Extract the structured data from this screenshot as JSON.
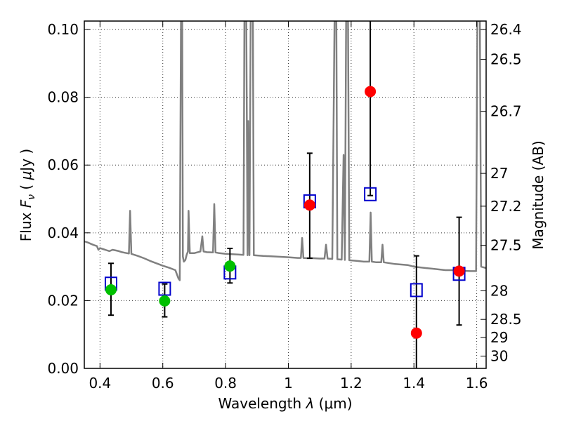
{
  "chart_data": {
    "type": "scatter",
    "xlabel": "Wavelength  λ (μm)",
    "ylabel": "Flux  Fν ( μJy )",
    "y2label": "Magnitude (AB)",
    "xlim": [
      0.35,
      1.63
    ],
    "ylim": [
      0.0,
      0.1025
    ],
    "xticks": [
      0.4,
      0.6,
      0.8,
      1.0,
      1.2,
      1.4,
      1.6
    ],
    "xtick_labels": [
      "0.4",
      "0.6",
      "0.8",
      "1",
      "1.2",
      "1.4",
      "1.6"
    ],
    "yticks": [
      0.0,
      0.02,
      0.04,
      0.06,
      0.08,
      0.1
    ],
    "ytick_labels": [
      "0.00",
      "0.02",
      "0.04",
      "0.06",
      "0.08",
      "0.10"
    ],
    "mag_ticks": [
      26.4,
      26.5,
      26.7,
      27,
      27.2,
      27.5,
      28,
      28.5,
      29,
      30
    ],
    "mag_tick_labels": [
      "26.4",
      "26.5",
      "26.7",
      "27",
      "27.2",
      "27.5",
      "28",
      "28.5",
      "29",
      "30"
    ],
    "grid": true,
    "colors": {
      "spectrum": "#808080",
      "detected": "#00c000",
      "model": "#0000cc",
      "undetected": "#ff0000",
      "errorbar": "#000000"
    },
    "observed": [
      {
        "x": 0.435,
        "y": 0.0232,
        "err_lo": 0.0075,
        "err_hi": 0.0078,
        "color": "green"
      },
      {
        "x": 0.606,
        "y": 0.0199,
        "err_lo": 0.0047,
        "err_hi": 0.005,
        "color": "green"
      },
      {
        "x": 0.814,
        "y": 0.0302,
        "err_lo": 0.005,
        "err_hi": 0.0052,
        "color": "green"
      },
      {
        "x": 1.068,
        "y": 0.0482,
        "err_lo": 0.0157,
        "err_hi": 0.0153,
        "color": "red"
      },
      {
        "x": 1.261,
        "y": 0.0817,
        "err_lo": 0.0307,
        "err_hi": 0.03,
        "color": "red"
      },
      {
        "x": 1.408,
        "y": 0.0104,
        "err_lo": 0.011,
        "err_hi": 0.0228,
        "color": "red"
      },
      {
        "x": 1.544,
        "y": 0.0287,
        "err_lo": 0.0159,
        "err_hi": 0.0159,
        "color": "red"
      }
    ],
    "model_photometry": [
      {
        "x": 0.435,
        "y": 0.025
      },
      {
        "x": 0.606,
        "y": 0.0235
      },
      {
        "x": 0.814,
        "y": 0.0283
      },
      {
        "x": 1.068,
        "y": 0.0493
      },
      {
        "x": 1.261,
        "y": 0.0514
      },
      {
        "x": 1.408,
        "y": 0.0231
      },
      {
        "x": 1.544,
        "y": 0.0279
      }
    ],
    "spectrum": [
      [
        0.35,
        0.0375
      ],
      [
        0.36,
        0.0372
      ],
      [
        0.37,
        0.0368
      ],
      [
        0.38,
        0.0364
      ],
      [
        0.39,
        0.0361
      ],
      [
        0.395,
        0.035
      ],
      [
        0.4,
        0.0355
      ],
      [
        0.41,
        0.0352
      ],
      [
        0.42,
        0.0349
      ],
      [
        0.43,
        0.0346
      ],
      [
        0.44,
        0.035
      ],
      [
        0.45,
        0.0348
      ],
      [
        0.46,
        0.0346
      ],
      [
        0.47,
        0.0343
      ],
      [
        0.48,
        0.0341
      ],
      [
        0.492,
        0.0339
      ],
      [
        0.496,
        0.0465
      ],
      [
        0.5,
        0.0338
      ],
      [
        0.52,
        0.0332
      ],
      [
        0.54,
        0.0325
      ],
      [
        0.56,
        0.0317
      ],
      [
        0.58,
        0.031
      ],
      [
        0.6,
        0.0303
      ],
      [
        0.62,
        0.0297
      ],
      [
        0.64,
        0.029
      ],
      [
        0.65,
        0.0265
      ],
      [
        0.654,
        0.026
      ],
      [
        0.658,
        0.1025
      ],
      [
        0.662,
        0.1025
      ],
      [
        0.664,
        0.033
      ],
      [
        0.667,
        0.0315
      ],
      [
        0.672,
        0.032
      ],
      [
        0.676,
        0.0335
      ],
      [
        0.68,
        0.0345
      ],
      [
        0.682,
        0.0465
      ],
      [
        0.686,
        0.034
      ],
      [
        0.7,
        0.034
      ],
      [
        0.72,
        0.0345
      ],
      [
        0.726,
        0.039
      ],
      [
        0.73,
        0.0345
      ],
      [
        0.74,
        0.0343
      ],
      [
        0.76,
        0.0342
      ],
      [
        0.764,
        0.0485
      ],
      [
        0.768,
        0.0342
      ],
      [
        0.78,
        0.034
      ],
      [
        0.8,
        0.0338
      ],
      [
        0.82,
        0.0337
      ],
      [
        0.84,
        0.0336
      ],
      [
        0.857,
        0.0335
      ],
      [
        0.86,
        0.1025
      ],
      [
        0.866,
        0.1025
      ],
      [
        0.87,
        0.0334
      ],
      [
        0.872,
        0.073
      ],
      [
        0.876,
        0.0334
      ],
      [
        0.88,
        0.1025
      ],
      [
        0.887,
        0.1025
      ],
      [
        0.89,
        0.0334
      ],
      [
        0.92,
        0.0332
      ],
      [
        0.96,
        0.033
      ],
      [
        1.0,
        0.0328
      ],
      [
        1.03,
        0.0326
      ],
      [
        1.04,
        0.0326
      ],
      [
        1.044,
        0.0385
      ],
      [
        1.048,
        0.0326
      ],
      [
        1.06,
        0.0325
      ],
      [
        1.08,
        0.0325
      ],
      [
        1.1,
        0.0324
      ],
      [
        1.115,
        0.0324
      ],
      [
        1.12,
        0.0365
      ],
      [
        1.125,
        0.0324
      ],
      [
        1.14,
        0.0323
      ],
      [
        1.147,
        0.1025
      ],
      [
        1.153,
        0.1025
      ],
      [
        1.156,
        0.0322
      ],
      [
        1.17,
        0.0321
      ],
      [
        1.176,
        0.063
      ],
      [
        1.18,
        0.032
      ],
      [
        1.184,
        0.1025
      ],
      [
        1.19,
        0.1025
      ],
      [
        1.194,
        0.0319
      ],
      [
        1.22,
        0.0317
      ],
      [
        1.24,
        0.0315
      ],
      [
        1.258,
        0.0315
      ],
      [
        1.262,
        0.046
      ],
      [
        1.266,
        0.0315
      ],
      [
        1.28,
        0.0313
      ],
      [
        1.296,
        0.0313
      ],
      [
        1.3,
        0.0365
      ],
      [
        1.304,
        0.0313
      ],
      [
        1.34,
        0.0308
      ],
      [
        1.38,
        0.0305
      ],
      [
        1.4,
        0.03
      ],
      [
        1.42,
        0.0298
      ],
      [
        1.44,
        0.0296
      ],
      [
        1.46,
        0.0294
      ],
      [
        1.48,
        0.0292
      ],
      [
        1.5,
        0.029
      ],
      [
        1.52,
        0.029
      ],
      [
        1.55,
        0.0288
      ],
      [
        1.58,
        0.0287
      ],
      [
        1.598,
        0.0287
      ],
      [
        1.602,
        0.1025
      ],
      [
        1.61,
        0.1025
      ],
      [
        1.614,
        0.03
      ],
      [
        1.63,
        0.0296
      ]
    ]
  }
}
